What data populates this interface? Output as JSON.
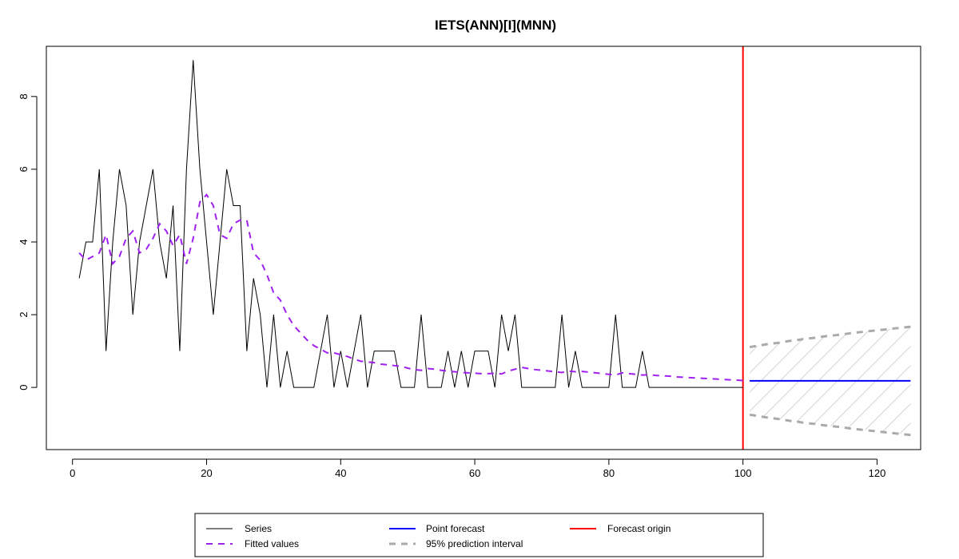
{
  "chart_data": {
    "type": "line",
    "title": "IETS(ANN)[I](MNN)",
    "xlabel": "",
    "ylabel": "",
    "xlim": [
      -3.9,
      126.5
    ],
    "ylim": [
      -1.71,
      9.38
    ],
    "x_ticks": [
      0,
      20,
      40,
      60,
      80,
      100,
      120
    ],
    "y_ticks": [
      0,
      2,
      4,
      6,
      8
    ],
    "grid": false,
    "legend_position": "bottom",
    "forecast_origin": 100,
    "colors": {
      "series": "#000000",
      "fitted": "#a020f0",
      "point_forecast": "#0000ff",
      "forecast_origin": "#ff0000",
      "interval": "#aaaaaa",
      "hatch": "#d3d3d3"
    },
    "series": [
      {
        "name": "Series",
        "x_start": 1,
        "values": [
          3,
          4,
          4,
          6,
          1,
          4,
          6,
          5,
          2,
          4,
          5,
          6,
          4,
          3,
          5,
          1,
          6,
          9,
          6,
          4,
          2,
          4,
          6,
          5,
          5,
          1,
          3,
          2,
          0,
          2,
          0,
          1,
          0,
          0,
          0,
          0,
          1,
          2,
          0,
          1,
          0,
          1,
          2,
          0,
          1,
          1,
          1,
          1,
          0,
          0,
          0,
          2,
          0,
          0,
          0,
          1,
          0,
          1,
          0,
          1,
          1,
          1,
          0,
          2,
          1,
          2,
          0,
          0,
          0,
          0,
          0,
          0,
          2,
          0,
          1,
          0,
          0,
          0,
          0,
          0,
          2,
          0,
          0,
          0,
          1,
          0,
          0,
          0,
          0,
          0,
          0,
          0,
          0,
          0,
          0,
          0,
          0,
          0,
          0,
          0
        ]
      },
      {
        "name": "Fitted values",
        "x_start": 1,
        "values": [
          3.7,
          3.5,
          3.6,
          3.7,
          4.2,
          3.4,
          3.6,
          4.1,
          4.3,
          3.7,
          3.8,
          4.1,
          4.5,
          4.3,
          3.9,
          4.2,
          3.4,
          4.1,
          5.1,
          5.3,
          5.0,
          4.2,
          4.1,
          4.5,
          4.6,
          4.6,
          3.7,
          3.5,
          3.1,
          2.6,
          2.4,
          2.0,
          1.7,
          1.5,
          1.3,
          1.15,
          1.05,
          0.95,
          0.95,
          0.9,
          0.85,
          0.78,
          0.72,
          0.7,
          0.68,
          0.64,
          0.62,
          0.6,
          0.58,
          0.53,
          0.49,
          0.47,
          0.52,
          0.5,
          0.47,
          0.45,
          0.43,
          0.41,
          0.4,
          0.39,
          0.38,
          0.38,
          0.39,
          0.37,
          0.45,
          0.5,
          0.55,
          0.52,
          0.49,
          0.47,
          0.45,
          0.43,
          0.41,
          0.45,
          0.43,
          0.44,
          0.42,
          0.4,
          0.38,
          0.36,
          0.34,
          0.4,
          0.38,
          0.36,
          0.34,
          0.35,
          0.33,
          0.32,
          0.31,
          0.29,
          0.28,
          0.27,
          0.26,
          0.25,
          0.24,
          0.23,
          0.22,
          0.21,
          0.2,
          0.19
        ]
      },
      {
        "name": "Point forecast",
        "x_start": 101,
        "values": [
          0.18,
          0.18,
          0.18,
          0.18,
          0.18,
          0.18,
          0.18,
          0.18,
          0.18,
          0.18,
          0.18,
          0.18,
          0.18,
          0.18,
          0.18,
          0.18,
          0.18,
          0.18,
          0.18,
          0.18,
          0.18,
          0.18,
          0.18,
          0.18,
          0.18
        ]
      },
      {
        "name": "95% prediction interval upper",
        "x_start": 101,
        "values": [
          1.11,
          1.14,
          1.17,
          1.2,
          1.22,
          1.25,
          1.28,
          1.3,
          1.33,
          1.35,
          1.37,
          1.4,
          1.42,
          1.44,
          1.46,
          1.49,
          1.51,
          1.53,
          1.55,
          1.57,
          1.59,
          1.61,
          1.63,
          1.65,
          1.67
        ]
      },
      {
        "name": "95% prediction interval lower",
        "x_start": 101,
        "values": [
          -0.75,
          -0.78,
          -0.81,
          -0.84,
          -0.86,
          -0.89,
          -0.92,
          -0.94,
          -0.97,
          -0.99,
          -1.01,
          -1.04,
          -1.06,
          -1.08,
          -1.1,
          -1.13,
          -1.15,
          -1.17,
          -1.19,
          -1.21,
          -1.23,
          -1.25,
          -1.27,
          -1.29,
          -1.31
        ]
      }
    ],
    "legend": {
      "series": "Series",
      "fitted": "Fitted values",
      "point_forecast": "Point forecast",
      "interval": "95% prediction interval",
      "origin": "Forecast origin"
    }
  }
}
